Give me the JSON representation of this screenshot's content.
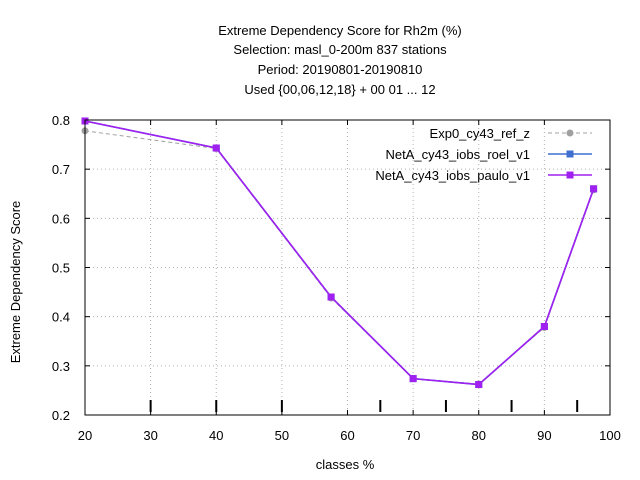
{
  "chart_data": {
    "type": "line",
    "title_lines": [
      "Extreme Dependency Score  for Rh2m (%)",
      "Selection: masl_0-200m    837 stations",
      "Period: 20190801-20190810",
      "Used {00,06,12,18} + 00 01 ... 12"
    ],
    "xlabel": "classes %",
    "ylabel": "Extreme Dependency Score",
    "xlim": [
      20,
      100
    ],
    "ylim": [
      0.2,
      0.8
    ],
    "xticks": [
      20,
      30,
      40,
      50,
      60,
      70,
      80,
      90,
      100
    ],
    "yticks": [
      0.2,
      0.3,
      0.4,
      0.5,
      0.6,
      0.7,
      0.8
    ],
    "xtick_labels": [
      "20",
      "30",
      "40",
      "50",
      "60",
      "70",
      "80",
      "90",
      "100"
    ],
    "ytick_labels": [
      "0.2",
      "0.3",
      "0.4",
      "0.5",
      "0.6",
      "0.7",
      "0.8"
    ],
    "class_markers_x": [
      30,
      40,
      50,
      65,
      75,
      85,
      95
    ],
    "grid": true,
    "legend_position": "top-right",
    "series": [
      {
        "name": "Exp0_cy43_ref_z",
        "color": "#a0a0a0",
        "dashed": true,
        "x": [
          20,
          40,
          57.5,
          70,
          80,
          90,
          97.5
        ],
        "y": [
          0.778,
          0.742,
          0.438,
          0.274,
          0.263,
          0.378,
          0.658
        ]
      },
      {
        "name": "NetA_cy43_iobs_roel_v1",
        "color": "#3f6fcf",
        "dashed": false,
        "x": [
          20,
          40,
          57.5,
          70,
          80,
          90,
          97.5
        ],
        "y": [
          0.798,
          0.743,
          0.44,
          0.274,
          0.262,
          0.38,
          0.66
        ]
      },
      {
        "name": "NetA_cy43_iobs_paulo_v1",
        "color": "#a020f0",
        "dashed": false,
        "x": [
          20,
          40,
          57.5,
          70,
          80,
          90,
          97.5
        ],
        "y": [
          0.798,
          0.743,
          0.44,
          0.274,
          0.262,
          0.38,
          0.66
        ]
      }
    ]
  }
}
